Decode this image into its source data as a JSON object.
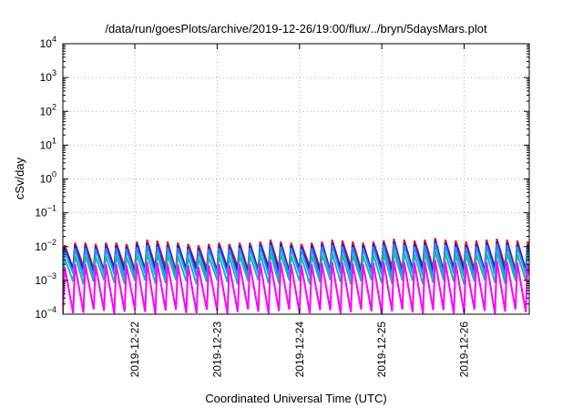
{
  "chart_data": {
    "type": "line",
    "title": "/data/run/goesPlots/archive/2019-12-26/19:00/flux/../bryn/5daysMars.plot",
    "xlabel": "Coordinated Universal Time (UTC)",
    "ylabel": "cSv/day",
    "y_scale": "log",
    "ylim": [
      0.0001,
      10000
    ],
    "y_ticks": [
      {
        "exp": "-4"
      },
      {
        "exp": "-3"
      },
      {
        "exp": "-2"
      },
      {
        "exp": "-1"
      },
      {
        "exp": "0"
      },
      {
        "exp": "1"
      },
      {
        "exp": "2"
      },
      {
        "exp": "3"
      },
      {
        "exp": "4"
      }
    ],
    "y_tick_base": "10",
    "x_range": [
      "2019-12-21T03:00",
      "2019-12-26T19:00"
    ],
    "x_ticks": [
      "2019-12-22",
      "2019-12-23",
      "2019-12-24",
      "2019-12-25",
      "2019-12-26"
    ],
    "grid": true,
    "sawtooth_period_hours": 3,
    "series": [
      {
        "color": "#e41a1c",
        "peak": [
          0.011,
          0.013,
          0.013,
          0.012,
          0.013,
          0.013,
          0.012,
          0.014,
          0.016,
          0.015,
          0.014,
          0.013,
          0.012,
          0.011,
          0.012,
          0.013,
          0.012,
          0.013,
          0.013,
          0.014,
          0.016,
          0.014,
          0.013,
          0.012,
          0.013,
          0.014,
          0.016,
          0.015,
          0.014,
          0.013,
          0.014,
          0.015,
          0.017,
          0.016,
          0.015,
          0.016,
          0.018,
          0.016,
          0.015,
          0.014,
          0.015,
          0.016,
          0.017,
          0.016,
          0.015,
          0.014
        ],
        "trough": 0.0022
      },
      {
        "color": "#1a1adb",
        "peak": [
          0.009,
          0.011,
          0.011,
          0.01,
          0.011,
          0.011,
          0.01,
          0.012,
          0.013,
          0.012,
          0.011,
          0.011,
          0.01,
          0.009,
          0.01,
          0.011,
          0.01,
          0.011,
          0.011,
          0.012,
          0.013,
          0.012,
          0.011,
          0.01,
          0.011,
          0.012,
          0.013,
          0.012,
          0.011,
          0.011,
          0.012,
          0.013,
          0.014,
          0.013,
          0.012,
          0.013,
          0.015,
          0.013,
          0.012,
          0.011,
          0.012,
          0.013,
          0.014,
          0.013,
          0.012,
          0.011
        ],
        "trough": 0.0019
      },
      {
        "color": "#1e90ff",
        "peak": [
          0.0075,
          0.009,
          0.009,
          0.0085,
          0.009,
          0.009,
          0.0085,
          0.0095,
          0.011,
          0.01,
          0.0095,
          0.009,
          0.0085,
          0.0075,
          0.0085,
          0.009,
          0.0085,
          0.009,
          0.009,
          0.01,
          0.011,
          0.01,
          0.009,
          0.0085,
          0.009,
          0.01,
          0.011,
          0.01,
          0.0095,
          0.009,
          0.01,
          0.011,
          0.012,
          0.011,
          0.01,
          0.011,
          0.013,
          0.011,
          0.01,
          0.0095,
          0.01,
          0.011,
          0.012,
          0.011,
          0.01,
          0.0095
        ],
        "trough": 0.0014
      },
      {
        "color": "#20b2aa",
        "peak": [
          0.0045,
          0.0055,
          0.0055,
          0.005,
          0.0055,
          0.0055,
          0.005,
          0.006,
          0.0065,
          0.006,
          0.0058,
          0.0055,
          0.005,
          0.0045,
          0.005,
          0.0055,
          0.005,
          0.0055,
          0.0055,
          0.006,
          0.0065,
          0.006,
          0.0055,
          0.005,
          0.0055,
          0.006,
          0.0065,
          0.006,
          0.0058,
          0.0055,
          0.006,
          0.0065,
          0.007,
          0.0065,
          0.006,
          0.0065,
          0.0075,
          0.0065,
          0.006,
          0.0058,
          0.006,
          0.0065,
          0.007,
          0.0065,
          0.006,
          0.0058
        ],
        "trough": 0.0009
      },
      {
        "color": "#ff00ff",
        "peak": [
          0.0025,
          0.003,
          0.003,
          0.0028,
          0.003,
          0.003,
          0.0028,
          0.0032,
          0.0035,
          0.0033,
          0.0031,
          0.003,
          0.0028,
          0.0025,
          0.0028,
          0.003,
          0.0028,
          0.003,
          0.003,
          0.0032,
          0.0035,
          0.0033,
          0.003,
          0.0028,
          0.003,
          0.0032,
          0.0035,
          0.0033,
          0.0031,
          0.003,
          0.0032,
          0.0035,
          0.0038,
          0.0035,
          0.0033,
          0.0035,
          0.004,
          0.0035,
          0.0033,
          0.0031,
          0.0033,
          0.0035,
          0.0038,
          0.0035,
          0.0033,
          0.0031
        ],
        "trough": 0.00012
      }
    ]
  }
}
